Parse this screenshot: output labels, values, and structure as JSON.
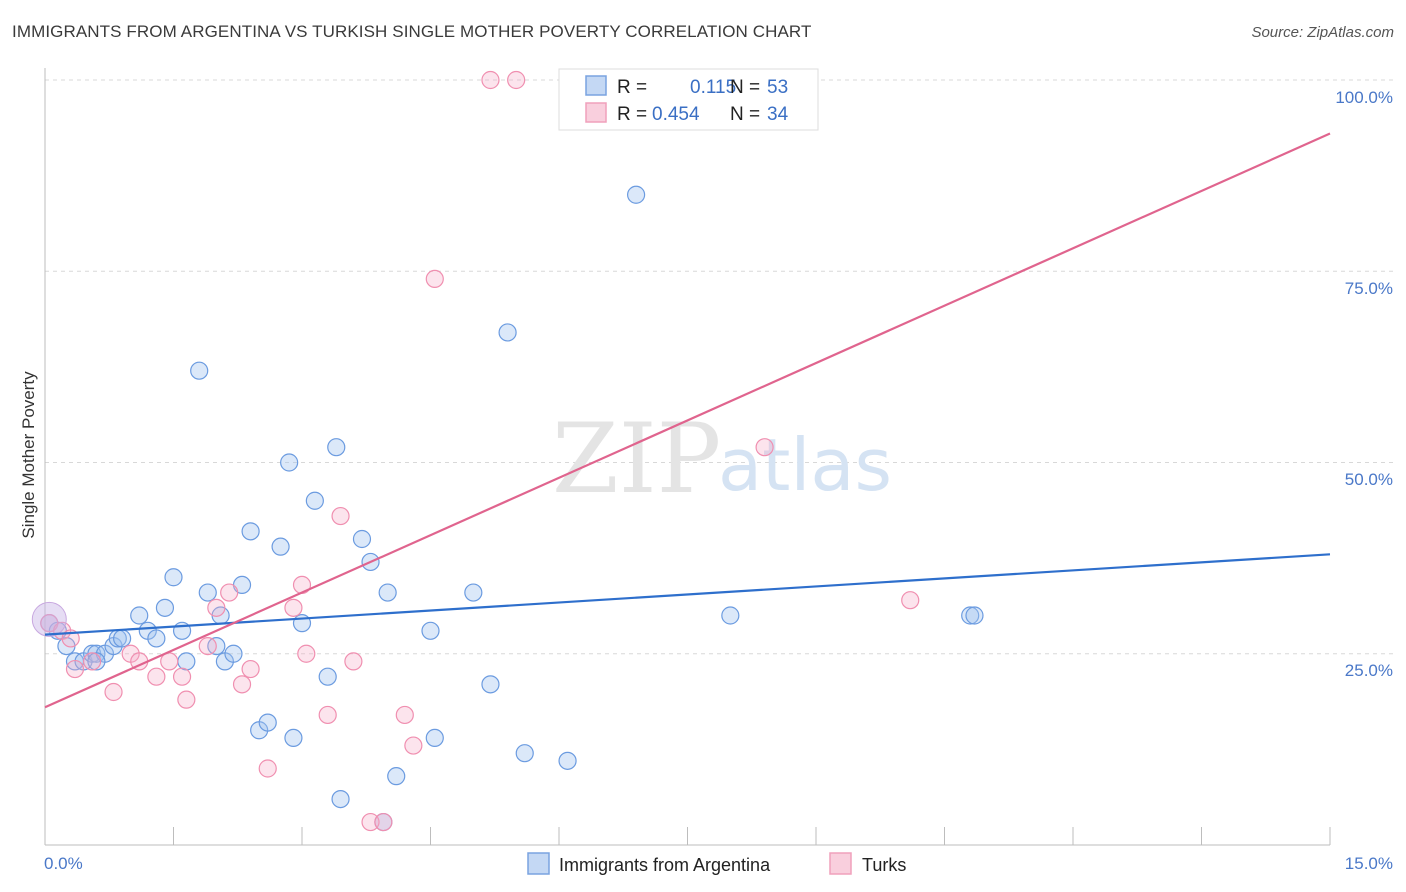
{
  "header": {
    "title": "IMMIGRANTS FROM ARGENTINA VS TURKISH SINGLE MOTHER POVERTY CORRELATION CHART",
    "source": "Source: ZipAtlas.com"
  },
  "watermark": {
    "zip": "ZIP",
    "atlas": "atlas"
  },
  "chart_data": {
    "type": "scatter",
    "title": "IMMIGRANTS FROM ARGENTINA VS TURKISH SINGLE MOTHER POVERTY CORRELATION CHART",
    "xlabel": "",
    "ylabel": "Single Mother Poverty",
    "xlim": [
      0,
      15
    ],
    "ylim": [
      0,
      100
    ],
    "x_tick_labels": [
      "0.0%",
      "15.0%"
    ],
    "y_tick_labels": [
      "100.0%",
      "75.0%",
      "50.0%",
      "25.0%"
    ],
    "y_ticks": [
      100,
      75,
      50,
      25
    ],
    "grid": true,
    "legend_position": "bottom",
    "stats_box": [
      {
        "r_label": "R =",
        "r": "0.115",
        "n_label": "N =",
        "n": "53"
      },
      {
        "r_label": "R =",
        "r": "0.454",
        "n_label": "N =",
        "n": "34"
      }
    ],
    "series": [
      {
        "name": "Immigrants from Argentina",
        "color": "#6b9be0",
        "line_color": "#2e6fcc",
        "trend": [
          [
            0,
            27.5
          ],
          [
            15,
            38
          ]
        ],
        "points": [
          [
            0.05,
            29
          ],
          [
            0.15,
            28
          ],
          [
            0.25,
            26
          ],
          [
            0.35,
            24
          ],
          [
            0.45,
            24
          ],
          [
            0.55,
            25
          ],
          [
            0.6,
            25
          ],
          [
            0.7,
            25
          ],
          [
            0.8,
            26
          ],
          [
            0.85,
            27
          ],
          [
            0.9,
            27
          ],
          [
            1.1,
            30
          ],
          [
            1.2,
            28
          ],
          [
            1.3,
            27
          ],
          [
            1.4,
            31
          ],
          [
            1.5,
            35
          ],
          [
            1.6,
            28
          ],
          [
            1.65,
            24
          ],
          [
            1.8,
            62
          ],
          [
            1.9,
            33
          ],
          [
            2.0,
            26
          ],
          [
            2.05,
            30
          ],
          [
            2.1,
            24
          ],
          [
            2.2,
            25
          ],
          [
            2.3,
            34
          ],
          [
            2.4,
            41
          ],
          [
            2.5,
            15
          ],
          [
            2.6,
            16
          ],
          [
            2.75,
            39
          ],
          [
            2.85,
            50
          ],
          [
            2.9,
            14
          ],
          [
            3.0,
            29
          ],
          [
            3.15,
            45
          ],
          [
            3.3,
            22
          ],
          [
            3.4,
            52
          ],
          [
            3.45,
            6
          ],
          [
            3.7,
            40
          ],
          [
            3.8,
            37
          ],
          [
            3.95,
            3
          ],
          [
            4.0,
            33
          ],
          [
            4.1,
            9
          ],
          [
            4.5,
            28
          ],
          [
            4.55,
            14
          ],
          [
            5.0,
            33
          ],
          [
            5.2,
            21
          ],
          [
            5.6,
            12
          ],
          [
            6.1,
            11
          ],
          [
            6.9,
            85
          ],
          [
            8.0,
            30
          ],
          [
            10.8,
            30
          ],
          [
            10.85,
            30
          ],
          [
            5.4,
            67
          ],
          [
            0.6,
            24
          ]
        ]
      },
      {
        "name": "Turks",
        "color": "#f08fb0",
        "line_color": "#e0648e",
        "trend": [
          [
            0,
            18
          ],
          [
            15,
            93
          ]
        ],
        "points": [
          [
            0.05,
            29
          ],
          [
            0.2,
            28
          ],
          [
            0.3,
            27
          ],
          [
            0.35,
            23
          ],
          [
            0.55,
            24
          ],
          [
            0.8,
            20
          ],
          [
            1.0,
            25
          ],
          [
            1.1,
            24
          ],
          [
            1.3,
            22
          ],
          [
            1.45,
            24
          ],
          [
            1.6,
            22
          ],
          [
            1.65,
            19
          ],
          [
            1.9,
            26
          ],
          [
            2.0,
            31
          ],
          [
            2.15,
            33
          ],
          [
            2.3,
            21
          ],
          [
            2.4,
            23
          ],
          [
            2.6,
            10
          ],
          [
            2.9,
            31
          ],
          [
            3.0,
            34
          ],
          [
            3.05,
            25
          ],
          [
            3.3,
            17
          ],
          [
            3.45,
            43
          ],
          [
            3.6,
            24
          ],
          [
            3.8,
            3
          ],
          [
            3.95,
            3
          ],
          [
            4.2,
            17
          ],
          [
            4.3,
            13
          ],
          [
            4.55,
            74
          ],
          [
            5.2,
            100
          ],
          [
            5.5,
            100
          ],
          [
            6.1,
            100
          ],
          [
            8.4,
            52
          ],
          [
            10.1,
            32
          ]
        ]
      }
    ]
  }
}
